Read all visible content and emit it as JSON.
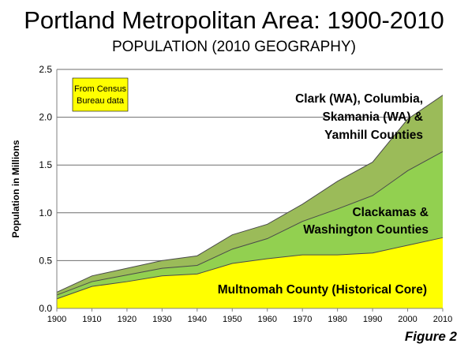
{
  "page": {
    "title": "Portland Metropolitan Area: 1900-2010",
    "subtitle": "POPULATION (2010 GEOGRAPHY)",
    "figure_label": "Figure 2",
    "source_note": "From Census Bureau data"
  },
  "chart_data": {
    "type": "area",
    "stacked": true,
    "x": [
      1900,
      1910,
      1920,
      1930,
      1940,
      1950,
      1960,
      1970,
      1980,
      1990,
      2000,
      2010
    ],
    "xlabel": "",
    "ylabel": "Population in Millions",
    "ylim": [
      0,
      2.5
    ],
    "yticks": [
      "0.0",
      "0.5",
      "1.0",
      "1.5",
      "2.0",
      "2.5"
    ],
    "grid": "horizontal",
    "series": [
      {
        "name": "Multnomah County (Historical Core)",
        "color": "#ffff00",
        "values": [
          0.1,
          0.23,
          0.28,
          0.34,
          0.36,
          0.47,
          0.52,
          0.56,
          0.56,
          0.58,
          0.66,
          0.74
        ]
      },
      {
        "name": "Clackamas & Washington Counties",
        "color": "#92d050",
        "values": [
          0.04,
          0.05,
          0.07,
          0.08,
          0.09,
          0.15,
          0.21,
          0.35,
          0.48,
          0.6,
          0.78,
          0.9
        ]
      },
      {
        "name": "Clark (WA), Columbia, Skamania (WA) & Yamhill Counties",
        "color": "#9bbb59",
        "values": [
          0.03,
          0.06,
          0.07,
          0.08,
          0.1,
          0.15,
          0.15,
          0.18,
          0.29,
          0.35,
          0.54,
          0.59
        ]
      }
    ],
    "labels": [
      {
        "lines": [
          "Clark (WA), Columbia,",
          "Skamania (WA) &",
          "Yamhill Counties"
        ]
      },
      {
        "lines": [
          "Clackamas &",
          "Washington Counties"
        ]
      },
      {
        "lines": [
          "Multnomah County (Historical Core)"
        ]
      }
    ]
  }
}
